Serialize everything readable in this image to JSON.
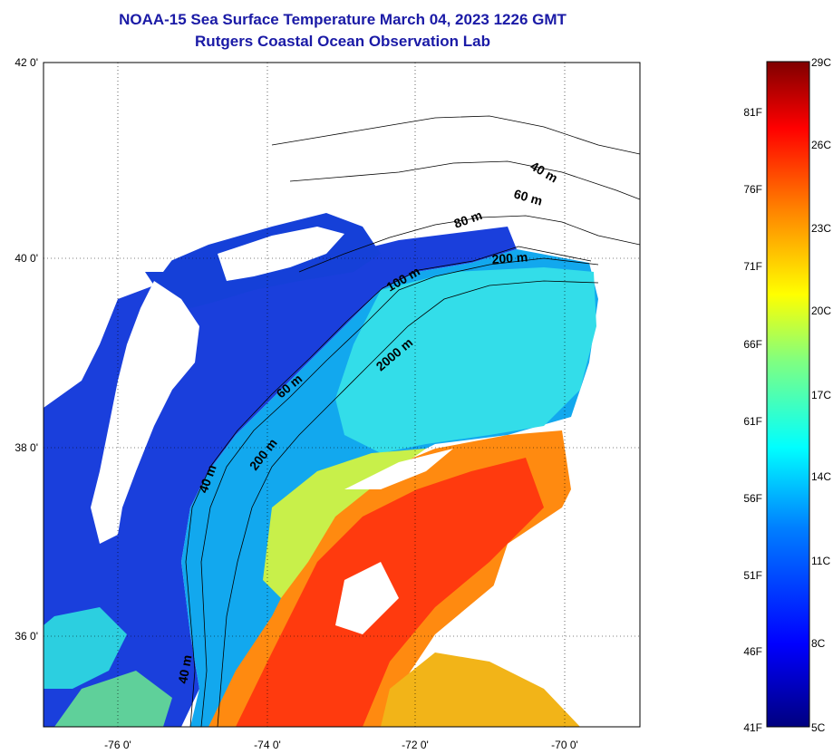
{
  "title": {
    "line1": "NOAA-15 Sea Surface Temperature March 04, 2023 1226 GMT",
    "line2": "Rutgers Coastal Ocean Observation Lab"
  },
  "map": {
    "longitude_ticks": [
      "-76 0'",
      "-74 0'",
      "-72 0'",
      "-70 0'"
    ],
    "latitude_ticks": [
      "42 0'",
      "40 0'",
      "38 0'",
      "36 0'"
    ],
    "depth_contour_labels": [
      "40 m",
      "60 m",
      "80 m",
      "200 m",
      "100 m",
      "60 m",
      "2000 m",
      "200 m",
      "40 m",
      "40 m"
    ]
  },
  "colorbar": {
    "fahrenheit_labels": [
      "81F",
      "76F",
      "71F",
      "66F",
      "61F",
      "56F",
      "51F",
      "46F",
      "41F"
    ],
    "celsius_labels": [
      "29C",
      "26C",
      "23C",
      "20C",
      "17C",
      "14C",
      "11C",
      "8C",
      "5C"
    ],
    "colors": [
      "#00007f",
      "#0000ff",
      "#0080ff",
      "#00ffff",
      "#80ff80",
      "#ffff00",
      "#ff8000",
      "#ff0000",
      "#7f0000"
    ]
  }
}
